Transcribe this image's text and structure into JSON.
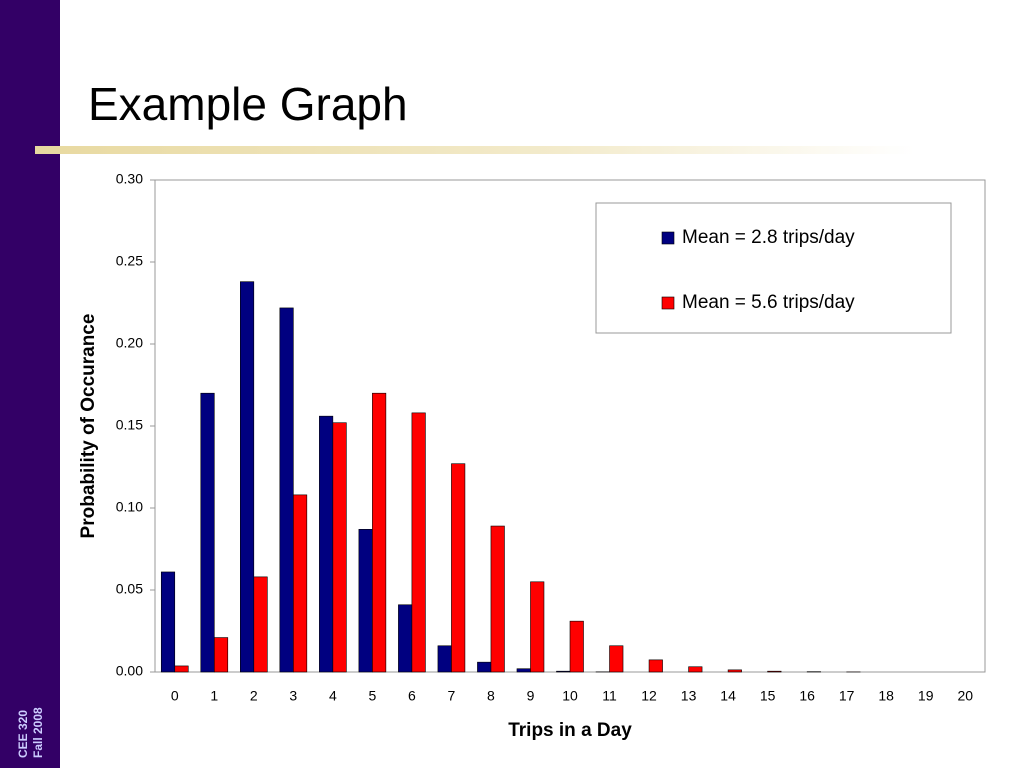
{
  "slide": {
    "title": "Example Graph",
    "footer": [
      "CEE 320",
      "Fall 2008"
    ]
  },
  "chart_data": {
    "type": "bar",
    "x_label": "Trips in a Day",
    "y_label": "Probability of Occurance",
    "categories": [
      "0",
      "1",
      "2",
      "3",
      "4",
      "5",
      "6",
      "7",
      "8",
      "9",
      "10",
      "11",
      "12",
      "13",
      "14",
      "15",
      "16",
      "17",
      "18",
      "19",
      "20"
    ],
    "series": [
      {
        "name": "Mean = 2.8 trips/day",
        "color": "#000080",
        "values": [
          0.061,
          0.17,
          0.238,
          0.222,
          0.156,
          0.087,
          0.041,
          0.016,
          0.006,
          0.002,
          0.0005,
          0.0001,
          0,
          0,
          0,
          0,
          0,
          0,
          0,
          0,
          0
        ]
      },
      {
        "name": "Mean = 5.6 trips/day",
        "color": "#ff0000",
        "values": [
          0.0037,
          0.021,
          0.058,
          0.108,
          0.152,
          0.17,
          0.158,
          0.127,
          0.089,
          0.055,
          0.031,
          0.016,
          0.0074,
          0.0032,
          0.0013,
          0.0005,
          0.0002,
          5e-05,
          0,
          0,
          0
        ]
      }
    ],
    "ylim": [
      0,
      0.3
    ],
    "yticks": [
      {
        "value": 0,
        "label": "0.00"
      },
      {
        "value": 0.05,
        "label": "0.05"
      },
      {
        "value": 0.1,
        "label": "0.10"
      },
      {
        "value": 0.15,
        "label": "0.15"
      },
      {
        "value": 0.2,
        "label": "0.20"
      },
      {
        "value": 0.25,
        "label": "0.25"
      },
      {
        "value": 0.3,
        "label": "0.30"
      }
    ],
    "legend": "upper right",
    "grid": false
  }
}
